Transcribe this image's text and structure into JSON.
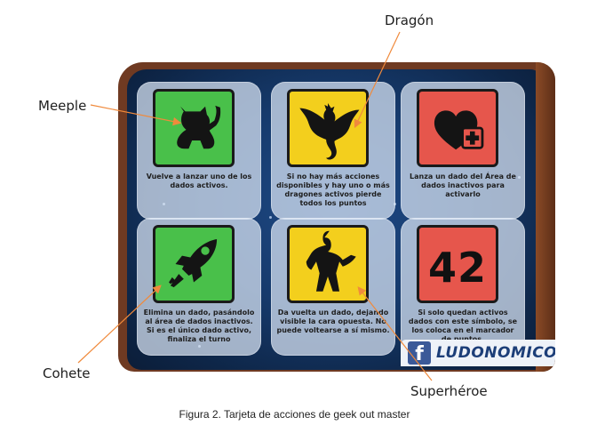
{
  "callouts": {
    "dragon": "Dragón",
    "meeple": "Meeple",
    "cohete": "Cohete",
    "superheroe": "Superhéroe"
  },
  "card": {
    "tiles": [
      {
        "icon": "meeple-icon",
        "color": "#49c04a",
        "text": "Vuelve a lanzar uno de los dados activos."
      },
      {
        "icon": "dragon-icon",
        "color": "#f3cf1d",
        "text": "Si no hay más acciones disponibles y hay uno o más dragones activos pierde todos los puntos"
      },
      {
        "icon": "heart-plus-icon",
        "color": "#e6564c",
        "text": "Lanza un dado del Área de dados inactivos para activarlo"
      },
      {
        "icon": "rocket-icon",
        "color": "#49c04a",
        "text": "Elimina un dado, pasándolo al área de dados inactivos. Si es el único dado activo, finaliza el turno"
      },
      {
        "icon": "superhero-icon",
        "color": "#f3cf1d",
        "text": "Da vuelta un dado, dejando visible la cara opuesta. No puede voltearse a sí mismo."
      },
      {
        "icon": "number-42",
        "color": "#e6564c",
        "symbol": "42",
        "text": "Si solo quedan activos dados con este símbolo, se los coloca en el marcador de puntos."
      }
    ],
    "banner": {
      "icon": "facebook-icon",
      "fb_letter": "f",
      "brand": "LUDONOMICON"
    }
  },
  "caption": "Figura 2. Tarjeta de acciones de geek out master"
}
